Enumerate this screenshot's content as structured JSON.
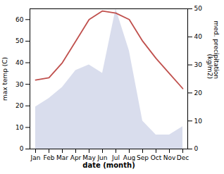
{
  "chart_data": {
    "type": "line",
    "categories": [
      "Jan",
      "Feb",
      "Mar",
      "Apr",
      "May",
      "Jun",
      "Jul",
      "Aug",
      "Sep",
      "Oct",
      "Nov",
      "Dec"
    ],
    "series": [
      {
        "type": "area",
        "axis": "y2",
        "color": "#aab4d8",
        "values": [
          15,
          18,
          22,
          28,
          30,
          27,
          50,
          35,
          10,
          5,
          5,
          8
        ]
      },
      {
        "type": "line",
        "axis": "y",
        "color": "#c0504d",
        "values": [
          32,
          33,
          40,
          50,
          60,
          64,
          63,
          60,
          50,
          42,
          35,
          28
        ]
      }
    ],
    "xlabel": "date (month)",
    "ylabel": "max temp (C)",
    "y2label": "med. precipitation\n(kg/m2)",
    "ylim": [
      0,
      65
    ],
    "yticks": [
      0,
      10,
      20,
      30,
      40,
      50,
      60
    ],
    "y2lim": [
      0,
      50
    ],
    "y2ticks": [
      0,
      10,
      20,
      30,
      40,
      50
    ],
    "grid": false
  }
}
